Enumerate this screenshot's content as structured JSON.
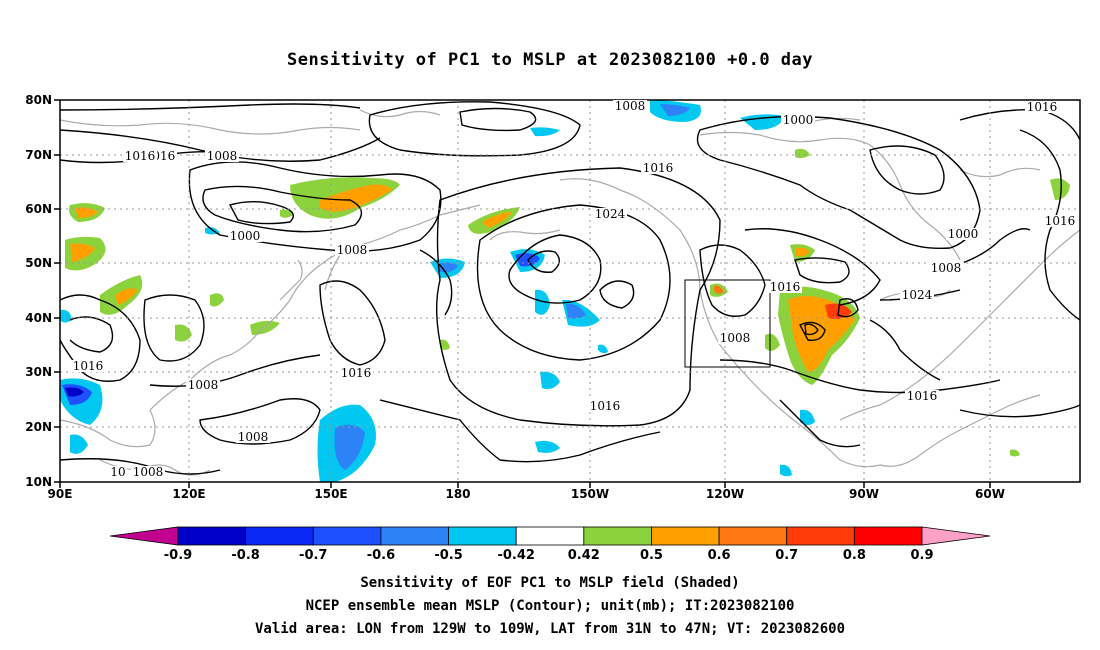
{
  "title": "Sensitivity of PC1 to MSLP at 2023082100 +0.0 day",
  "captions": [
    "Sensitivity of EOF PC1 to MSLP field (Shaded)",
    "NCEP ensemble mean MSLP (Contour); unit(mb); IT:2023082100",
    "Valid area: LON from 129W to 109W, LAT from 31N to 47N; VT: 2023082600"
  ],
  "lat_labels": [
    "80N",
    "70N",
    "60N",
    "50N",
    "40N",
    "30N",
    "20N",
    "10N"
  ],
  "lon_labels": [
    "90E",
    "120E",
    "150E",
    "180",
    "150W",
    "120W",
    "90W",
    "60W"
  ],
  "contour_labels": [
    "1008",
    "1016",
    "1008",
    "1000",
    "1008",
    "1016",
    "1024",
    "1000",
    "1016",
    "1016",
    "1008",
    "1000",
    "1008",
    "1016",
    "1024",
    "1016",
    "1008",
    "1016",
    "1008",
    "1016",
    "1016",
    "1008",
    "1008",
    "1016",
    "10"
  ],
  "colorbar": {
    "labels": [
      "-0.9",
      "-0.8",
      "-0.7",
      "-0.6",
      "-0.5",
      "-0.42",
      "0.42",
      "0.5",
      "0.6",
      "0.7",
      "0.8",
      "0.9"
    ],
    "colors": [
      "#c2008f",
      "#0000c8",
      "#0a28f5",
      "#1e50ff",
      "#2d82f5",
      "#00c8f0",
      "#ffffff",
      "#8cd23c",
      "#ffa000",
      "#ff7814",
      "#ff3c0a",
      "#ff0000",
      "#ffa0c8"
    ]
  },
  "valid_box": {
    "lon": [
      "129W",
      "109W"
    ],
    "lat": [
      "31N",
      "47N"
    ]
  }
}
